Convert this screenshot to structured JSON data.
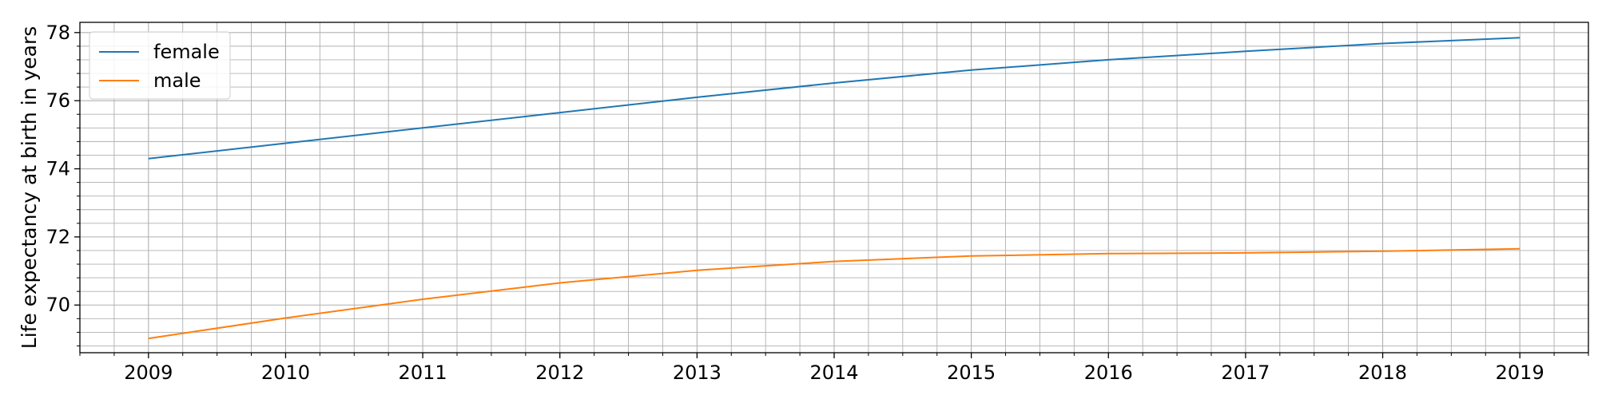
{
  "chart_data": {
    "type": "line",
    "title": "",
    "xlabel": "",
    "ylabel": "Life expectancy at birth in years",
    "x": [
      2009,
      2010,
      2011,
      2012,
      2013,
      2014,
      2015,
      2016,
      2017,
      2018,
      2019
    ],
    "series": [
      {
        "name": "female",
        "color": "#1f77b4",
        "values": [
          74.3,
          74.75,
          75.2,
          75.65,
          76.1,
          76.52,
          76.9,
          77.2,
          77.45,
          77.68,
          77.85
        ]
      },
      {
        "name": "male",
        "color": "#ff7f0e",
        "values": [
          69.02,
          69.62,
          70.17,
          70.65,
          71.02,
          71.28,
          71.44,
          71.51,
          71.53,
          71.58,
          71.65
        ]
      }
    ],
    "x_ticks": [
      "2009",
      "2010",
      "2011",
      "2012",
      "2013",
      "2014",
      "2015",
      "2016",
      "2017",
      "2018",
      "2019"
    ],
    "y_ticks": [
      "70",
      "72",
      "74",
      "76",
      "78"
    ],
    "xlim": [
      2008.5,
      2019.5
    ],
    "ylim": [
      68.6,
      78.3
    ],
    "grid": "major and minor",
    "legend": {
      "position": "top-left"
    }
  }
}
